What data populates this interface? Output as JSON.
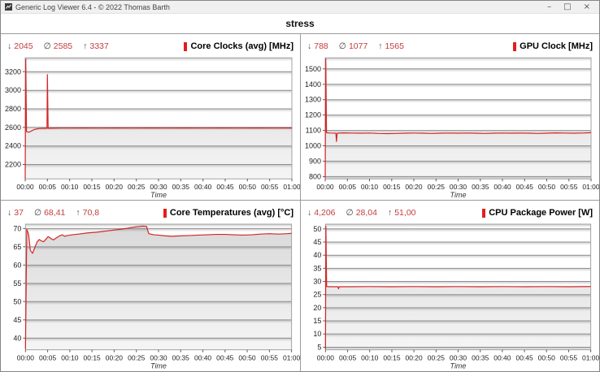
{
  "window": {
    "title": "Generic Log Viewer 6.4 - © 2022 Thomas Barth",
    "controls": {
      "minimize": "–",
      "maximize": "□",
      "close": "×"
    }
  },
  "header": {
    "title": "stress"
  },
  "stats_symbols": {
    "min": "↓",
    "avg": "∅",
    "max": "↑"
  },
  "colors": {
    "line_red": "#d42525",
    "title_bar_red": "#e01f1f",
    "stat_red": "#c43c3c",
    "grid_line": "#8f8f8f",
    "plot_border": "#a3a3a3",
    "tick": "#555555",
    "label": "#222222"
  },
  "time_axis": {
    "label": "Time",
    "tick_minutes": [
      0,
      5,
      10,
      15,
      20,
      25,
      30,
      35,
      40,
      45,
      50,
      55,
      60
    ],
    "tick_labels": [
      "00:00",
      "00:05",
      "00:10",
      "00:15",
      "00:20",
      "00:25",
      "00:30",
      "00:35",
      "00:40",
      "00:45",
      "00:50",
      "00:55",
      "01:00"
    ]
  },
  "chart_data": [
    {
      "type": "line",
      "title": "Core Clocks (avg) [MHz]",
      "stats": {
        "min": "2045",
        "avg": "2585",
        "max": "3337"
      },
      "xlabel": "Time",
      "xlim": [
        0,
        60
      ],
      "ylim": [
        2045,
        3350
      ],
      "yticks": [
        2200,
        2400,
        2600,
        2800,
        3000,
        3200
      ],
      "series": [
        [
          0,
          2045
        ],
        [
          0.12,
          3337
        ],
        [
          0.3,
          2555
        ],
        [
          0.8,
          2548
        ],
        [
          1.4,
          2562
        ],
        [
          2.2,
          2580
        ],
        [
          3.2,
          2588
        ],
        [
          4.4,
          2590
        ],
        [
          4.9,
          2590
        ],
        [
          5.0,
          3170
        ],
        [
          5.15,
          2590
        ],
        [
          6,
          2591
        ],
        [
          8,
          2592
        ],
        [
          10,
          2592
        ],
        [
          13,
          2593
        ],
        [
          16,
          2592
        ],
        [
          20,
          2593
        ],
        [
          24,
          2592
        ],
        [
          28,
          2593
        ],
        [
          32,
          2592
        ],
        [
          36,
          2593
        ],
        [
          40,
          2592
        ],
        [
          44,
          2593
        ],
        [
          48,
          2592
        ],
        [
          52,
          2593
        ],
        [
          56,
          2592
        ],
        [
          60,
          2593
        ]
      ]
    },
    {
      "type": "line",
      "title": "GPU Clock [MHz]",
      "stats": {
        "min": "788",
        "avg": "1077",
        "max": "1565"
      },
      "xlabel": "Time",
      "xlim": [
        0,
        60
      ],
      "ylim": [
        785,
        1572
      ],
      "yticks": [
        800,
        900,
        1000,
        1100,
        1200,
        1300,
        1400,
        1500
      ],
      "series": [
        [
          0,
          788
        ],
        [
          0.12,
          1565
        ],
        [
          0.3,
          1085
        ],
        [
          1,
          1083
        ],
        [
          2.4,
          1082
        ],
        [
          2.55,
          1028
        ],
        [
          2.7,
          1082
        ],
        [
          4,
          1084
        ],
        [
          6,
          1083
        ],
        [
          8,
          1082
        ],
        [
          10,
          1083
        ],
        [
          12,
          1080
        ],
        [
          14,
          1079
        ],
        [
          16,
          1080
        ],
        [
          18,
          1082
        ],
        [
          20,
          1083
        ],
        [
          22,
          1082
        ],
        [
          24,
          1080
        ],
        [
          26,
          1082
        ],
        [
          28,
          1083
        ],
        [
          30,
          1082
        ],
        [
          32,
          1083
        ],
        [
          34,
          1082
        ],
        [
          36,
          1080
        ],
        [
          38,
          1082
        ],
        [
          40,
          1083
        ],
        [
          42,
          1082
        ],
        [
          44,
          1083
        ],
        [
          46,
          1082
        ],
        [
          48,
          1080
        ],
        [
          50,
          1082
        ],
        [
          52,
          1084
        ],
        [
          54,
          1083
        ],
        [
          56,
          1082
        ],
        [
          58,
          1083
        ],
        [
          60,
          1085
        ]
      ]
    },
    {
      "type": "line",
      "title": "Core Temperatures (avg) [°C]",
      "stats": {
        "min": "37",
        "avg": "68,41",
        "max": "70,8"
      },
      "xlabel": "Time",
      "xlim": [
        0,
        60
      ],
      "ylim": [
        36.8,
        71.2
      ],
      "yticks": [
        40,
        45,
        50,
        55,
        60,
        65,
        70
      ],
      "series": [
        [
          0,
          37
        ],
        [
          0.3,
          69.8
        ],
        [
          0.7,
          68.5
        ],
        [
          1.1,
          64.0
        ],
        [
          1.6,
          63.2
        ],
        [
          2.1,
          64.8
        ],
        [
          2.6,
          66.3
        ],
        [
          3.1,
          67.0
        ],
        [
          3.6,
          66.6
        ],
        [
          4.1,
          66.4
        ],
        [
          4.7,
          67.2
        ],
        [
          5.1,
          67.8
        ],
        [
          5.7,
          67.3
        ],
        [
          6.3,
          66.9
        ],
        [
          7.0,
          67.5
        ],
        [
          7.7,
          68.0
        ],
        [
          8.3,
          68.3
        ],
        [
          8.8,
          67.9
        ],
        [
          9.5,
          68.1
        ],
        [
          10.5,
          68.3
        ],
        [
          12,
          68.5
        ],
        [
          14,
          68.8
        ],
        [
          16,
          69.0
        ],
        [
          18,
          69.3
        ],
        [
          20,
          69.6
        ],
        [
          22,
          69.9
        ],
        [
          24,
          70.3
        ],
        [
          25,
          70.5
        ],
        [
          26.5,
          70.7
        ],
        [
          27.3,
          70.6
        ],
        [
          27.8,
          68.6
        ],
        [
          29,
          68.3
        ],
        [
          30,
          68.2
        ],
        [
          31.5,
          68.0
        ],
        [
          33,
          67.9
        ],
        [
          35,
          68.0
        ],
        [
          37,
          68.1
        ],
        [
          39,
          68.2
        ],
        [
          41,
          68.3
        ],
        [
          43,
          68.4
        ],
        [
          45,
          68.4
        ],
        [
          47,
          68.3
        ],
        [
          49,
          68.2
        ],
        [
          51,
          68.3
        ],
        [
          53,
          68.5
        ],
        [
          55,
          68.6
        ],
        [
          57,
          68.5
        ],
        [
          59,
          68.6
        ],
        [
          60,
          68.7
        ]
      ]
    },
    {
      "type": "line",
      "title": "CPU Package Power [W]",
      "stats": {
        "min": "4,206",
        "avg": "28,04",
        "max": "51,00"
      },
      "xlabel": "Time",
      "xlim": [
        0,
        60
      ],
      "ylim": [
        4.0,
        51.8
      ],
      "yticks": [
        5,
        10,
        15,
        20,
        25,
        30,
        35,
        40,
        45,
        50
      ],
      "series": [
        [
          0,
          4.206
        ],
        [
          0.1,
          51
        ],
        [
          0.25,
          28.1
        ],
        [
          1,
          28
        ],
        [
          2.8,
          28
        ],
        [
          2.95,
          27.2
        ],
        [
          3.1,
          28
        ],
        [
          5,
          28
        ],
        [
          10,
          28.05
        ],
        [
          15,
          28
        ],
        [
          20,
          28.05
        ],
        [
          25,
          28
        ],
        [
          30,
          28.05
        ],
        [
          35,
          28
        ],
        [
          40,
          28.05
        ],
        [
          45,
          28
        ],
        [
          50,
          28.05
        ],
        [
          55,
          28
        ],
        [
          60,
          28.1
        ]
      ]
    }
  ]
}
